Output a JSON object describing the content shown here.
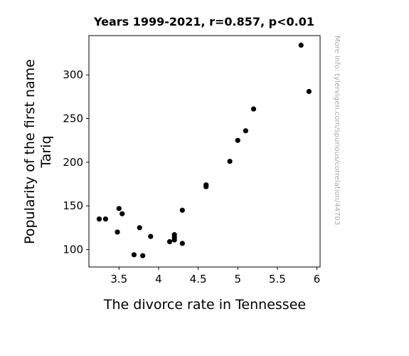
{
  "chart_data": {
    "type": "scatter",
    "title": "Years 1999-2021, r=0.857, p<0.01",
    "xlabel": "The divorce rate in Tennessee",
    "ylabel": "Popularity of the first name",
    "ylabel2": "Tariq",
    "xlim": [
      3.12,
      6.04
    ],
    "ylim": [
      80,
      345
    ],
    "xticks": [
      3.5,
      4,
      4.5,
      5,
      5.5,
      6
    ],
    "xtick_labels": [
      "3.5",
      "4",
      "4.5",
      "5",
      "5.5",
      "6"
    ],
    "yticks": [
      100,
      150,
      200,
      250,
      300
    ],
    "ytick_labels": [
      "100",
      "150",
      "200",
      "250",
      "300"
    ],
    "grid": false,
    "marker_color": "#000000",
    "points": [
      {
        "x": 3.25,
        "y": 135
      },
      {
        "x": 3.33,
        "y": 135
      },
      {
        "x": 3.48,
        "y": 120
      },
      {
        "x": 3.5,
        "y": 147
      },
      {
        "x": 3.54,
        "y": 141
      },
      {
        "x": 3.69,
        "y": 94
      },
      {
        "x": 3.76,
        "y": 125
      },
      {
        "x": 3.8,
        "y": 93
      },
      {
        "x": 3.9,
        "y": 115
      },
      {
        "x": 4.14,
        "y": 109
      },
      {
        "x": 4.2,
        "y": 117
      },
      {
        "x": 4.2,
        "y": 114
      },
      {
        "x": 4.2,
        "y": 111
      },
      {
        "x": 4.3,
        "y": 145
      },
      {
        "x": 4.3,
        "y": 107
      },
      {
        "x": 4.6,
        "y": 174
      },
      {
        "x": 4.6,
        "y": 172
      },
      {
        "x": 4.9,
        "y": 201
      },
      {
        "x": 5.0,
        "y": 225
      },
      {
        "x": 5.1,
        "y": 236
      },
      {
        "x": 5.2,
        "y": 261
      },
      {
        "x": 5.8,
        "y": 334
      },
      {
        "x": 5.9,
        "y": 281
      }
    ]
  },
  "watermark": "More info: tylervigen.com/spurious/correlation/44703"
}
